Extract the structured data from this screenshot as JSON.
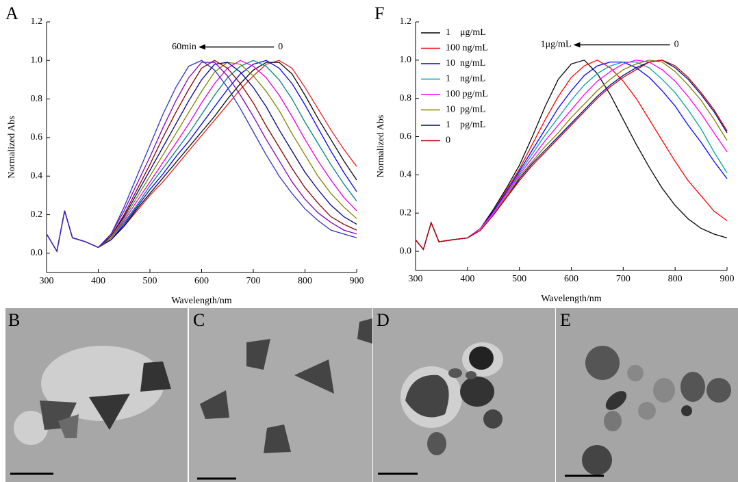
{
  "chart_data": [
    {
      "type": "line",
      "panel": "A",
      "x_label": "Wavelength/nm",
      "y_label": "Normalized Abs",
      "x": [
        300,
        320,
        335,
        350,
        375,
        400,
        425,
        450,
        475,
        500,
        525,
        550,
        575,
        600,
        625,
        650,
        675,
        700,
        725,
        750,
        775,
        800,
        825,
        850,
        875,
        900
      ],
      "xlim": [
        300,
        900
      ],
      "xticks": [
        300,
        400,
        500,
        600,
        700,
        800,
        900
      ],
      "ylim": [
        -0.1,
        1.2
      ],
      "yticks": [
        {
          "value": 0,
          "label": "0.0"
        },
        0.2,
        0.4,
        0.6,
        0.8,
        {
          "value": 1,
          "label": "1.0"
        },
        1.2
      ],
      "annotations": [
        {
          "text": "60min",
          "x": 590,
          "y": 1.07
        },
        {
          "text": "0",
          "x": 748,
          "y": 1.07
        }
      ],
      "series": [
        {
          "color": "#e02020",
          "values": [
            0.1,
            0.01,
            0.22,
            0.08,
            0.06,
            0.03,
            0.07,
            0.14,
            0.22,
            0.3,
            0.37,
            0.45,
            0.53,
            0.61,
            0.69,
            0.77,
            0.85,
            0.92,
            0.98,
            1.0,
            0.96,
            0.86,
            0.75,
            0.64,
            0.54,
            0.45
          ]
        },
        {
          "color": "#000000",
          "values": [
            0.1,
            0.01,
            0.22,
            0.08,
            0.06,
            0.03,
            0.07,
            0.14,
            0.23,
            0.31,
            0.39,
            0.47,
            0.55,
            0.63,
            0.71,
            0.8,
            0.88,
            0.95,
            0.99,
            0.99,
            0.93,
            0.82,
            0.7,
            0.59,
            0.48,
            0.38
          ]
        },
        {
          "color": "#0000e0",
          "values": [
            0.1,
            0.01,
            0.22,
            0.08,
            0.06,
            0.03,
            0.07,
            0.15,
            0.24,
            0.33,
            0.41,
            0.5,
            0.58,
            0.67,
            0.76,
            0.85,
            0.93,
            0.98,
            1.0,
            0.96,
            0.88,
            0.77,
            0.65,
            0.53,
            0.42,
            0.32
          ]
        },
        {
          "color": "#008080",
          "values": [
            0.1,
            0.01,
            0.22,
            0.08,
            0.06,
            0.03,
            0.08,
            0.16,
            0.25,
            0.35,
            0.44,
            0.53,
            0.62,
            0.72,
            0.82,
            0.91,
            0.97,
            1.0,
            0.97,
            0.9,
            0.8,
            0.68,
            0.57,
            0.46,
            0.36,
            0.27
          ]
        },
        {
          "color": "#e000e0",
          "values": [
            0.1,
            0.01,
            0.22,
            0.08,
            0.06,
            0.03,
            0.08,
            0.17,
            0.27,
            0.37,
            0.47,
            0.57,
            0.67,
            0.78,
            0.88,
            0.96,
            1.0,
            0.97,
            0.91,
            0.82,
            0.71,
            0.59,
            0.48,
            0.38,
            0.29,
            0.22
          ]
        },
        {
          "color": "#808000",
          "values": [
            0.1,
            0.01,
            0.22,
            0.08,
            0.06,
            0.03,
            0.08,
            0.18,
            0.29,
            0.4,
            0.51,
            0.62,
            0.73,
            0.84,
            0.94,
            0.99,
            0.98,
            0.92,
            0.84,
            0.74,
            0.62,
            0.51,
            0.4,
            0.31,
            0.24,
            0.18
          ]
        },
        {
          "color": "#000080",
          "values": [
            0.1,
            0.01,
            0.22,
            0.08,
            0.06,
            0.03,
            0.09,
            0.19,
            0.31,
            0.43,
            0.55,
            0.67,
            0.79,
            0.9,
            0.98,
            0.99,
            0.94,
            0.86,
            0.76,
            0.64,
            0.53,
            0.42,
            0.33,
            0.25,
            0.19,
            0.15
          ]
        },
        {
          "color": "#800000",
          "values": [
            0.1,
            0.01,
            0.22,
            0.08,
            0.06,
            0.03,
            0.09,
            0.2,
            0.33,
            0.46,
            0.6,
            0.73,
            0.85,
            0.96,
            1.0,
            0.96,
            0.88,
            0.78,
            0.66,
            0.55,
            0.44,
            0.34,
            0.26,
            0.19,
            0.15,
            0.12
          ]
        },
        {
          "color": "#8000c0",
          "values": [
            0.1,
            0.01,
            0.22,
            0.08,
            0.06,
            0.03,
            0.1,
            0.22,
            0.36,
            0.5,
            0.65,
            0.79,
            0.91,
            0.99,
            0.99,
            0.92,
            0.82,
            0.71,
            0.59,
            0.48,
            0.37,
            0.28,
            0.21,
            0.16,
            0.12,
            0.1
          ]
        },
        {
          "color": "#3030c0",
          "values": [
            0.1,
            0.01,
            0.22,
            0.08,
            0.06,
            0.03,
            0.1,
            0.24,
            0.4,
            0.56,
            0.72,
            0.86,
            0.97,
            1.0,
            0.95,
            0.86,
            0.75,
            0.63,
            0.51,
            0.4,
            0.31,
            0.23,
            0.17,
            0.12,
            0.1,
            0.08
          ]
        }
      ]
    },
    {
      "type": "line",
      "panel": "F",
      "x_label": "Wavelength/nm",
      "y_label": "Normalized Abs",
      "x": [
        300,
        315,
        330,
        345,
        370,
        400,
        425,
        450,
        475,
        500,
        525,
        550,
        575,
        600,
        625,
        650,
        675,
        700,
        725,
        750,
        775,
        800,
        825,
        850,
        875,
        900
      ],
      "xlim": [
        300,
        900
      ],
      "xticks": [
        300,
        400,
        500,
        600,
        700,
        800,
        900
      ],
      "ylim": [
        -0.1,
        1.2
      ],
      "yticks": [
        {
          "value": 0,
          "label": "0.0"
        },
        0.2,
        0.4,
        0.6,
        0.8,
        {
          "value": 1,
          "label": "1.0"
        },
        1.2
      ],
      "legend": "upper left",
      "annotations": [
        {
          "text": "1μg/mL",
          "x": 600,
          "y": 1.08
        },
        {
          "text": "0",
          "x": 798,
          "y": 1.08
        }
      ],
      "series": [
        {
          "name": "1    μg/mL",
          "color": "#000000",
          "values": [
            0.06,
            0.01,
            0.15,
            0.05,
            0.06,
            0.07,
            0.12,
            0.22,
            0.33,
            0.45,
            0.6,
            0.76,
            0.9,
            0.98,
            1.0,
            0.93,
            0.82,
            0.69,
            0.56,
            0.44,
            0.33,
            0.24,
            0.17,
            0.12,
            0.09,
            0.07
          ]
        },
        {
          "name": "100 ng/mL",
          "color": "#ff0000",
          "values": [
            0.06,
            0.01,
            0.15,
            0.05,
            0.06,
            0.07,
            0.12,
            0.21,
            0.32,
            0.43,
            0.56,
            0.69,
            0.81,
            0.91,
            0.97,
            1.0,
            0.96,
            0.89,
            0.8,
            0.69,
            0.58,
            0.47,
            0.37,
            0.29,
            0.21,
            0.16
          ]
        },
        {
          "name": "10  ng/mL",
          "color": "#0000ff",
          "values": [
            0.06,
            0.01,
            0.15,
            0.05,
            0.06,
            0.07,
            0.12,
            0.21,
            0.31,
            0.42,
            0.53,
            0.64,
            0.75,
            0.84,
            0.92,
            0.97,
            0.99,
            0.99,
            0.96,
            0.91,
            0.84,
            0.76,
            0.66,
            0.57,
            0.47,
            0.38
          ]
        },
        {
          "name": "1    ng/mL",
          "color": "#00a0a0",
          "values": [
            0.06,
            0.01,
            0.15,
            0.05,
            0.06,
            0.07,
            0.12,
            0.2,
            0.3,
            0.41,
            0.51,
            0.61,
            0.7,
            0.79,
            0.87,
            0.93,
            0.97,
            0.99,
            0.99,
            0.96,
            0.9,
            0.83,
            0.74,
            0.64,
            0.52,
            0.41
          ]
        },
        {
          "name": "100 pg/mL",
          "color": "#ff00ff",
          "values": [
            0.06,
            0.01,
            0.15,
            0.05,
            0.06,
            0.07,
            0.12,
            0.2,
            0.3,
            0.4,
            0.49,
            0.58,
            0.66,
            0.74,
            0.82,
            0.89,
            0.94,
            0.98,
            1.0,
            0.99,
            0.95,
            0.89,
            0.81,
            0.72,
            0.62,
            0.52
          ]
        },
        {
          "name": "10  pg/mL",
          "color": "#808000",
          "values": [
            0.06,
            0.01,
            0.15,
            0.05,
            0.06,
            0.07,
            0.11,
            0.19,
            0.29,
            0.39,
            0.47,
            0.55,
            0.62,
            0.7,
            0.77,
            0.84,
            0.9,
            0.95,
            0.98,
            1.0,
            0.99,
            0.94,
            0.87,
            0.79,
            0.69,
            0.58
          ]
        },
        {
          "name": "1    pg/mL",
          "color": "#000080",
          "values": [
            0.06,
            0.01,
            0.15,
            0.05,
            0.06,
            0.07,
            0.11,
            0.19,
            0.28,
            0.38,
            0.46,
            0.53,
            0.6,
            0.67,
            0.74,
            0.81,
            0.87,
            0.92,
            0.96,
            0.99,
            1.0,
            0.96,
            0.9,
            0.82,
            0.73,
            0.62
          ]
        },
        {
          "name": "0",
          "color": "#c00000",
          "values": [
            0.06,
            0.01,
            0.15,
            0.05,
            0.06,
            0.07,
            0.11,
            0.19,
            0.28,
            0.37,
            0.45,
            0.52,
            0.59,
            0.66,
            0.73,
            0.8,
            0.86,
            0.91,
            0.95,
            0.99,
            1.0,
            0.97,
            0.91,
            0.83,
            0.74,
            0.63
          ]
        }
      ]
    }
  ],
  "images": [
    {
      "panel": "B"
    },
    {
      "panel": "C"
    },
    {
      "panel": "D"
    },
    {
      "panel": "E"
    }
  ]
}
